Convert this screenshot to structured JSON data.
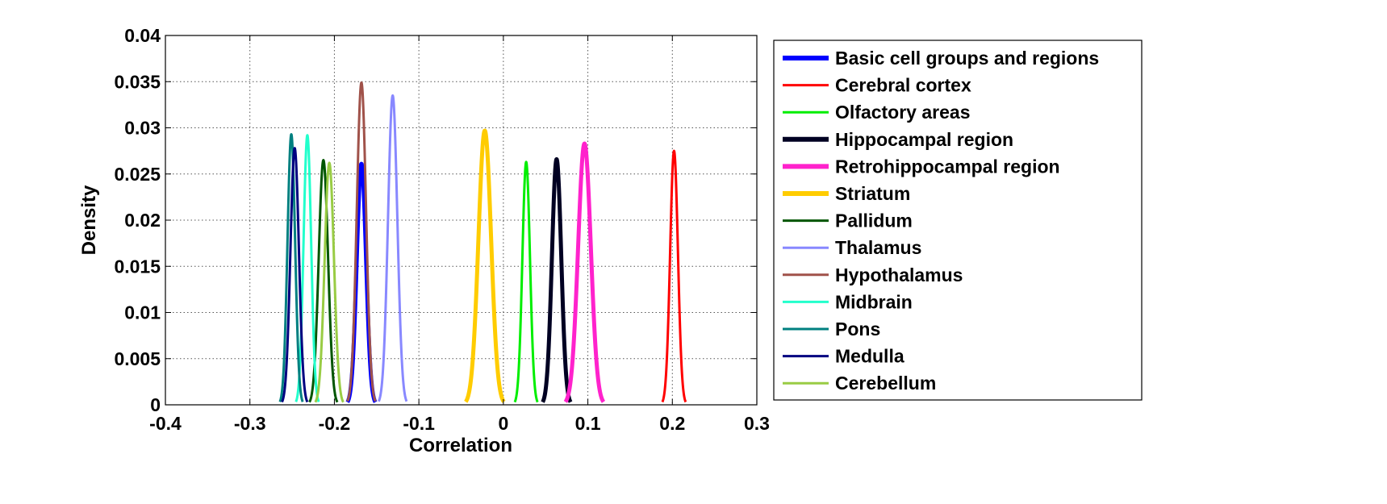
{
  "chart_data": {
    "type": "line",
    "title": "",
    "xlabel": "Correlation",
    "ylabel": "Density",
    "xlim": [
      -0.4,
      0.3
    ],
    "ylim": [
      0,
      0.04
    ],
    "xticks": [
      -0.4,
      -0.3,
      -0.2,
      -0.1,
      0,
      0.1,
      0.2,
      0.3
    ],
    "xtick_labels": [
      "-0.4",
      "-0.3",
      "-0.2",
      "-0.1",
      "0",
      "0.1",
      "0.2",
      "0.3"
    ],
    "yticks": [
      0,
      0.005,
      0.01,
      0.015,
      0.02,
      0.025,
      0.03,
      0.035,
      0.04
    ],
    "ytick_labels": [
      "0",
      "0.005",
      "0.01",
      "0.015",
      "0.02",
      "0.025",
      "0.03",
      "0.035",
      "0.04"
    ],
    "grid": true,
    "legend_position": "outside-right",
    "series": [
      {
        "name": "Basic cell groups and regions",
        "color": "#0000ff",
        "thick": true,
        "peak_x": -0.168,
        "peak_y": 0.0261,
        "width": 0.0055
      },
      {
        "name": "Cerebral cortex",
        "color": "#ff0000",
        "thick": false,
        "peak_x": 0.202,
        "peak_y": 0.0275,
        "width": 0.0046
      },
      {
        "name": "Olfactory areas",
        "color": "#00ee00",
        "thick": false,
        "peak_x": 0.027,
        "peak_y": 0.0263,
        "width": 0.0045
      },
      {
        "name": "Hippocampal region",
        "color": "#000022",
        "thick": true,
        "peak_x": 0.063,
        "peak_y": 0.0266,
        "width": 0.0055
      },
      {
        "name": "Retrohippocampal region",
        "color": "#ff22cc",
        "thick": true,
        "peak_x": 0.096,
        "peak_y": 0.0283,
        "width": 0.0075
      },
      {
        "name": "Striatum",
        "color": "#ffcc00",
        "thick": true,
        "peak_x": -0.022,
        "peak_y": 0.0297,
        "width": 0.0075
      },
      {
        "name": "Pallidum",
        "color": "#005500",
        "thick": false,
        "peak_x": -0.213,
        "peak_y": 0.0265,
        "width": 0.0055
      },
      {
        "name": "Thalamus",
        "color": "#8888ff",
        "thick": false,
        "peak_x": -0.131,
        "peak_y": 0.0335,
        "width": 0.0055
      },
      {
        "name": "Hypothalamus",
        "color": "#a0524a",
        "thick": false,
        "peak_x": -0.168,
        "peak_y": 0.0349,
        "width": 0.0055
      },
      {
        "name": "Midbrain",
        "color": "#22ffcc",
        "thick": false,
        "peak_x": -0.232,
        "peak_y": 0.0292,
        "width": 0.0045
      },
      {
        "name": "Pons",
        "color": "#008080",
        "thick": false,
        "peak_x": -0.251,
        "peak_y": 0.0293,
        "width": 0.0045
      },
      {
        "name": "Medulla",
        "color": "#000080",
        "thick": false,
        "peak_x": -0.247,
        "peak_y": 0.0278,
        "width": 0.005
      },
      {
        "name": "Cerebellum",
        "color": "#99cc44",
        "thick": false,
        "peak_x": -0.206,
        "peak_y": 0.0262,
        "width": 0.0055
      }
    ]
  }
}
